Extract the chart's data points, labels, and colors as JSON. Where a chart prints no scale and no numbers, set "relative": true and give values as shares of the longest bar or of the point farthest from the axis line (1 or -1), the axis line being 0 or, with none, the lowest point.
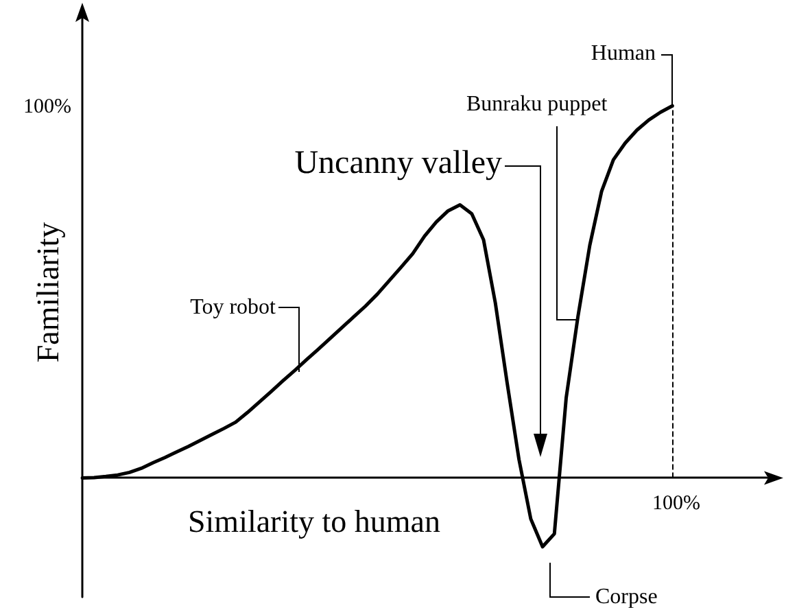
{
  "chart_data": {
    "type": "line",
    "xlabel": "Similarity to human",
    "ylabel": "Familiarity",
    "relative": true,
    "categories": [
      null,
      null,
      null,
      null,
      null,
      null,
      null,
      null,
      null,
      null,
      null,
      null,
      null,
      null,
      null,
      null,
      null,
      null,
      null,
      null,
      null,
      null,
      null,
      null,
      null,
      null,
      null,
      null,
      null,
      null,
      null,
      null,
      null,
      null,
      null,
      null,
      null,
      null,
      null,
      null,
      null,
      null,
      null,
      null,
      null,
      null,
      null,
      null,
      null,
      null,
      null,
      null,
      null,
      null,
      null,
      null,
      null,
      null,
      null
    ],
    "series": [
      {
        "color": "#000000",
        "values": [
          0,
          0.001,
          0.004,
          0.008,
          0.015,
          0.026,
          0.041,
          0.055,
          0.07,
          0.085,
          0.101,
          0.117,
          0.133,
          0.15,
          0.176,
          0.204,
          0.232,
          0.261,
          0.289,
          0.318,
          0.346,
          0.375,
          0.404,
          0.433,
          0.462,
          0.494,
          0.53,
          0.566,
          0.603,
          0.65,
          0.688,
          0.718,
          0.734,
          0.71,
          0.64,
          0.47,
          0.255,
          0.05,
          -0.11,
          -0.185,
          -0.15,
          0.215,
          0.434,
          0.625,
          0.77,
          0.855,
          0.9,
          0.935,
          0.962,
          0.983,
          1,
          null,
          null,
          null,
          null,
          null,
          null,
          null,
          null
        ]
      }
    ],
    "ref_lines": [
      {
        "axis": "x",
        "line_style": "dashed",
        "color": "#000000"
      }
    ],
    "annotations": [
      "100%",
      "Toy robot",
      "Uncanny valley",
      "Bunraku puppet",
      "Human",
      "Corpse",
      "100%"
    ],
    "grid": false,
    "marker": "none",
    "line_style": "solid"
  }
}
